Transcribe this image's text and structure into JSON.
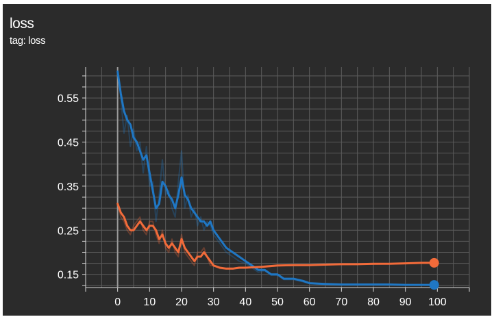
{
  "header": {
    "title": "loss",
    "subtitle": "tag: loss"
  },
  "colors": {
    "background": "#2b2b2b",
    "grid": "#5c5c5c",
    "axis": "#d8d8d8",
    "text": "#ffffff"
  },
  "chart_data": {
    "type": "line",
    "title": "loss",
    "subtitle": "tag: loss",
    "xlabel": "",
    "ylabel": "",
    "xlim": [
      -10,
      110
    ],
    "ylim": [
      0.12,
      0.62
    ],
    "x_ticks": [
      0,
      10,
      20,
      30,
      40,
      50,
      60,
      70,
      80,
      90,
      100
    ],
    "y_ticks": [
      0.15,
      0.25,
      0.35,
      0.45,
      0.55
    ],
    "y_tick_labels": [
      "0.15",
      "0.25",
      "0.35",
      "0.45",
      "0.55"
    ],
    "grid": true,
    "legend": "none",
    "series": [
      {
        "color": "#1f77c4",
        "x": [
          0,
          1,
          2,
          3,
          4,
          5,
          6,
          7,
          8,
          9,
          10,
          11,
          12,
          13,
          14,
          15,
          16,
          17,
          18,
          19,
          20,
          21,
          22,
          23,
          24,
          25,
          26,
          27,
          28,
          29,
          30,
          32,
          34,
          36,
          38,
          40,
          42,
          44,
          46,
          48,
          50,
          52,
          55,
          58,
          60,
          65,
          70,
          75,
          80,
          85,
          90,
          95,
          99
        ],
        "y": [
          0.61,
          0.56,
          0.52,
          0.5,
          0.49,
          0.46,
          0.45,
          0.43,
          0.41,
          0.42,
          0.38,
          0.34,
          0.3,
          0.31,
          0.36,
          0.35,
          0.33,
          0.32,
          0.3,
          0.33,
          0.37,
          0.33,
          0.32,
          0.3,
          0.29,
          0.28,
          0.27,
          0.27,
          0.26,
          0.27,
          0.25,
          0.23,
          0.21,
          0.2,
          0.19,
          0.18,
          0.17,
          0.16,
          0.16,
          0.15,
          0.15,
          0.14,
          0.14,
          0.135,
          0.13,
          0.128,
          0.127,
          0.127,
          0.127,
          0.127,
          0.126,
          0.126,
          0.126
        ],
        "raw_y": [
          0.61,
          0.55,
          0.47,
          0.51,
          0.44,
          0.48,
          0.43,
          0.45,
          0.38,
          0.44,
          0.35,
          0.36,
          0.27,
          0.33,
          0.41,
          0.33,
          0.34,
          0.3,
          0.28,
          0.36,
          0.43,
          0.3,
          0.33,
          0.28,
          0.3,
          0.26,
          0.28,
          0.25,
          0.27,
          0.26,
          0.24,
          0.22,
          0.2,
          0.19,
          0.18,
          0.175,
          0.165,
          0.155,
          0.158,
          0.148,
          0.148,
          0.138,
          0.138,
          0.133,
          0.129,
          0.127,
          0.126,
          0.127,
          0.126,
          0.127,
          0.126,
          0.126,
          0.126
        ],
        "end_marker": true
      },
      {
        "color": "#f26b3a",
        "x": [
          0,
          1,
          2,
          3,
          4,
          5,
          6,
          7,
          8,
          9,
          10,
          11,
          12,
          13,
          14,
          15,
          16,
          17,
          18,
          19,
          20,
          21,
          22,
          23,
          24,
          25,
          26,
          27,
          28,
          29,
          30,
          32,
          34,
          36,
          38,
          40,
          45,
          50,
          55,
          60,
          65,
          70,
          75,
          80,
          85,
          90,
          95,
          99
        ],
        "y": [
          0.31,
          0.29,
          0.28,
          0.26,
          0.25,
          0.25,
          0.26,
          0.27,
          0.26,
          0.25,
          0.26,
          0.26,
          0.25,
          0.23,
          0.24,
          0.22,
          0.21,
          0.22,
          0.21,
          0.2,
          0.23,
          0.21,
          0.2,
          0.19,
          0.18,
          0.19,
          0.19,
          0.2,
          0.19,
          0.18,
          0.17,
          0.165,
          0.163,
          0.163,
          0.165,
          0.165,
          0.167,
          0.17,
          0.171,
          0.171,
          0.172,
          0.173,
          0.173,
          0.174,
          0.174,
          0.175,
          0.176,
          0.176
        ],
        "raw_y": [
          0.31,
          0.28,
          0.27,
          0.25,
          0.24,
          0.26,
          0.27,
          0.28,
          0.25,
          0.24,
          0.27,
          0.27,
          0.24,
          0.22,
          0.25,
          0.21,
          0.2,
          0.23,
          0.2,
          0.19,
          0.24,
          0.2,
          0.19,
          0.18,
          0.17,
          0.2,
          0.2,
          0.21,
          0.19,
          0.17,
          0.17,
          0.163,
          0.162,
          0.162,
          0.164,
          0.165,
          0.166,
          0.169,
          0.17,
          0.171,
          0.172,
          0.172,
          0.173,
          0.173,
          0.174,
          0.174,
          0.175,
          0.176
        ],
        "end_marker": true
      }
    ]
  }
}
